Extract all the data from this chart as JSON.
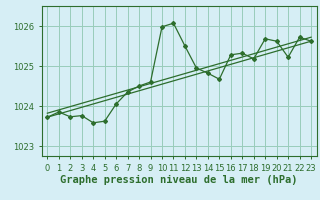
{
  "title": "Graphe pression niveau de la mer (hPa)",
  "bg_color": "#d6eef5",
  "grid_color": "#99ccbb",
  "line_color": "#2d6e2d",
  "marker_color": "#2d6e2d",
  "x_ticks": [
    0,
    1,
    2,
    3,
    4,
    5,
    6,
    7,
    8,
    9,
    10,
    11,
    12,
    13,
    14,
    15,
    16,
    17,
    18,
    19,
    20,
    21,
    22,
    23
  ],
  "y_ticks": [
    1023,
    1024,
    1025,
    1026
  ],
  "ylim": [
    1022.75,
    1026.5
  ],
  "xlim": [
    -0.5,
    23.5
  ],
  "series1_x": [
    0,
    1,
    2,
    3,
    4,
    5,
    6,
    7,
    8,
    9,
    10,
    11,
    12,
    13,
    14,
    15,
    16,
    17,
    18,
    19,
    20,
    21,
    22,
    23
  ],
  "series1_y": [
    1023.72,
    1023.85,
    1023.73,
    1023.76,
    1023.58,
    1023.62,
    1024.05,
    1024.35,
    1024.5,
    1024.6,
    1025.98,
    1026.07,
    1025.5,
    1024.95,
    1024.82,
    1024.67,
    1025.28,
    1025.32,
    1025.18,
    1025.68,
    1025.62,
    1025.22,
    1025.72,
    1025.62
  ],
  "trend1_x": [
    0,
    23
  ],
  "trend1_y": [
    1023.72,
    1025.62
  ],
  "trend2_x": [
    0,
    23
  ],
  "trend2_y": [
    1023.82,
    1025.72
  ],
  "title_fontsize": 7.5,
  "tick_fontsize": 6,
  "tick_color": "#2d6e2d",
  "spine_color": "#2d6e2d"
}
